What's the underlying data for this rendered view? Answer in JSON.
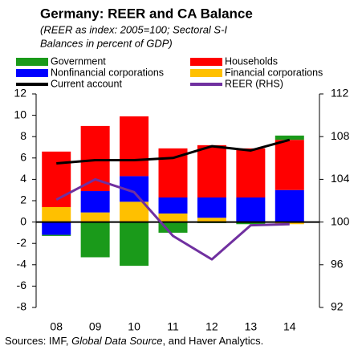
{
  "chart_data": {
    "type": "bar",
    "title": "Germany: REER and CA Balance",
    "subtitle": [
      "(REER as index: 2005=100; Sectoral S-I",
      "Balances in percent of GDP)"
    ],
    "source": [
      "Sources: IMF, ",
      "Global Data Source",
      ", and Haver Analytics."
    ],
    "categories": [
      "08",
      "09",
      "10",
      "11",
      "12",
      "13",
      "14"
    ],
    "stacked": true,
    "series": [
      {
        "name": "Government",
        "color": "#1a9a1a",
        "values": [
          -0.1,
          -3.3,
          -4.1,
          -1.0,
          -0.1,
          -0.2,
          0.4
        ]
      },
      {
        "name": "Households",
        "color": "#ff0000",
        "values": [
          5.2,
          6.1,
          5.6,
          4.6,
          4.9,
          4.6,
          4.7
        ]
      },
      {
        "name": "Nonfinancial corporations",
        "color": "#0000ff",
        "values": [
          -1.2,
          2.0,
          2.4,
          1.5,
          1.9,
          2.3,
          3.0
        ]
      },
      {
        "name": "Financial corporations",
        "color": "#ffc000",
        "values": [
          1.4,
          0.9,
          1.9,
          0.8,
          0.4,
          0.0,
          -0.2
        ]
      },
      {
        "name": "Current account",
        "type": "line",
        "color": "#000000",
        "values": [
          5.5,
          5.8,
          5.8,
          6.0,
          7.1,
          6.7,
          7.7
        ]
      },
      {
        "name": "REER (RHS)",
        "type": "line",
        "axis": "y2",
        "color": "#7030a0",
        "values": [
          102.1,
          104.0,
          102.8,
          98.7,
          96.5,
          99.7,
          99.8
        ]
      }
    ],
    "ylim": [
      -8,
      12
    ],
    "yticks": [
      -8,
      -6,
      -4,
      -2,
      0,
      2,
      4,
      6,
      8,
      10,
      12
    ],
    "y2lim": [
      92,
      112
    ],
    "y2ticks": [
      92,
      96,
      100,
      104,
      108,
      112
    ],
    "grid": false
  }
}
